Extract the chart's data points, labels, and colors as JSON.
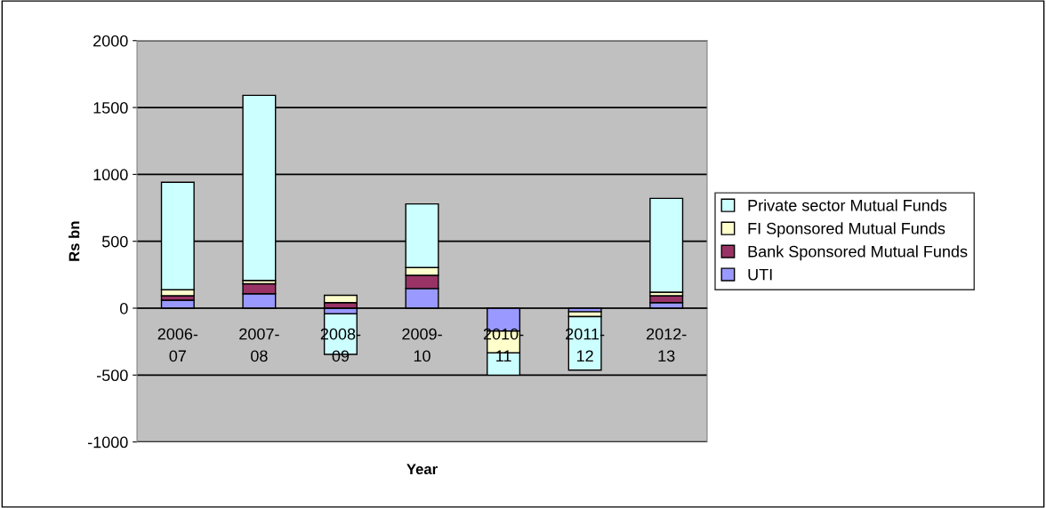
{
  "chart_data": {
    "type": "bar",
    "stacked": true,
    "xlabel": "Year",
    "ylabel": "Rs bn",
    "categories": [
      "2006-\n07",
      "2007-\n08",
      "2008-\n09",
      "2009-\n10",
      "2010-\n11",
      "2011-\n12",
      "2012-\n13"
    ],
    "series": [
      {
        "name": "UTI",
        "color": "#9999ff",
        "values": [
          60,
          108,
          -42,
          147,
          -171,
          -27,
          42
        ]
      },
      {
        "name": "Bank Sponsored Mutual Funds",
        "color": "#993366",
        "values": [
          33,
          75,
          42,
          99,
          null,
          null,
          51
        ]
      },
      {
        "name": "FI Sponsored Mutual Funds",
        "color": "#ffffcc",
        "values": [
          45,
          25,
          54,
          58,
          -163,
          -36,
          27
        ]
      },
      {
        "name": "Private sector Mutual Funds",
        "color": "#ccffff",
        "values": [
          803,
          1383,
          -303,
          475,
          -166,
          -400,
          701
        ]
      }
    ],
    "ylim": [
      -1000,
      2000
    ],
    "yticks": [
      -1000,
      -500,
      0,
      500,
      1000,
      1500,
      2000
    ],
    "grid": "y",
    "legend": "right"
  }
}
